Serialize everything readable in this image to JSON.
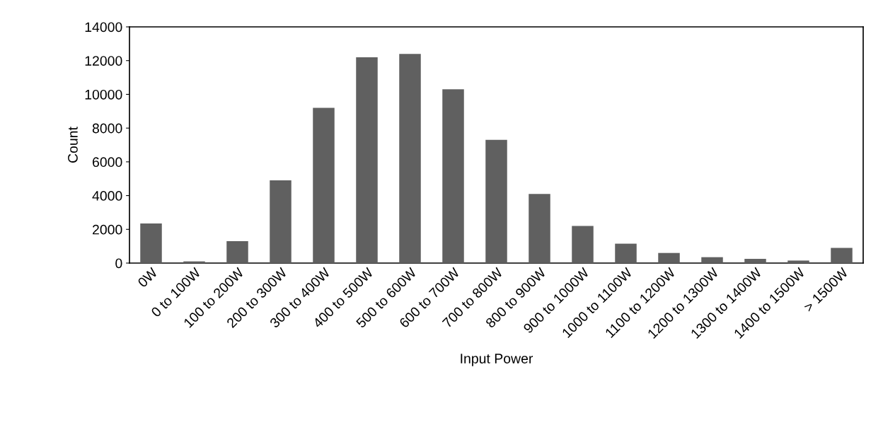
{
  "chart_data": {
    "type": "bar",
    "xlabel": "Input Power",
    "ylabel": "Count",
    "categories": [
      "0W",
      "0 to 100W",
      "100 to 200W",
      "200 to 300W",
      "300 to 400W",
      "400 to 500W",
      "500 to 600W",
      "600 to 700W",
      "700 to 800W",
      "800 to 900W",
      "900 to 1000W",
      "1000 to 1100W",
      "1100 to 1200W",
      "1200 to 1300W",
      "1300 to 1400W",
      "1400 to 1500W",
      "> 1500W"
    ],
    "values": [
      2350,
      100,
      1300,
      4900,
      9200,
      12200,
      12400,
      10300,
      7300,
      4100,
      2200,
      1150,
      600,
      350,
      250,
      150,
      900
    ],
    "color": "#606060",
    "ylim": [
      0,
      14000
    ],
    "yticks": [
      0,
      2000,
      4000,
      6000,
      8000,
      10000,
      12000,
      14000
    ],
    "grid": false
  }
}
